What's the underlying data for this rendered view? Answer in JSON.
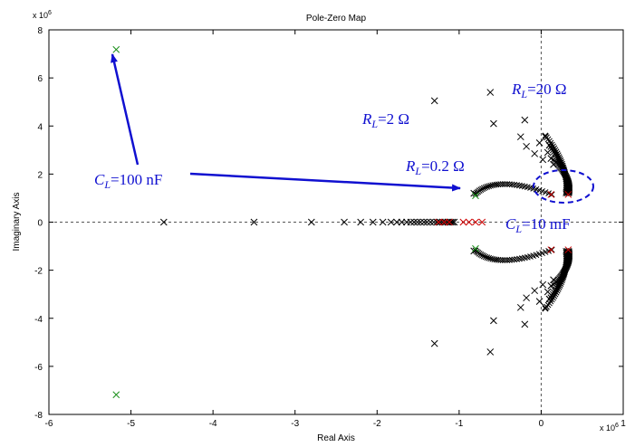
{
  "chart_data": {
    "type": "scatter",
    "title": "Pole-Zero Map",
    "xlabel": "Real Axis",
    "ylabel": "Imaginary Axis",
    "x_exponent": "x 10",
    "x_exponent_power": "6",
    "y_exponent": "x 10",
    "y_exponent_power": "6",
    "xlim": [
      -6,
      1
    ],
    "ylim": [
      -8,
      8
    ],
    "xticks": [
      -6,
      -5,
      -4,
      -3,
      -2,
      -1,
      0,
      1
    ],
    "yticks": [
      -8,
      -6,
      -4,
      -2,
      0,
      2,
      4,
      6,
      8
    ],
    "grid": false,
    "colors": {
      "black": "#000000",
      "green": "#1a8f1a",
      "red": "#cc0000",
      "annotation": "#1010d0"
    },
    "series": [
      {
        "color": "black",
        "marker": "x",
        "points": [
          [
            -4.6,
            0
          ],
          [
            -3.5,
            0
          ],
          [
            -2.8,
            0
          ],
          [
            -2.4,
            0
          ],
          [
            -2.2,
            0
          ],
          [
            -2.05,
            0
          ],
          [
            -1.93,
            0
          ],
          [
            -1.83,
            0
          ],
          [
            -1.76,
            0
          ],
          [
            -1.7,
            0
          ],
          [
            -1.64,
            0
          ],
          [
            -1.59,
            0
          ],
          [
            -1.55,
            0
          ],
          [
            -1.51,
            0
          ],
          [
            -1.47,
            0
          ],
          [
            -1.43,
            0
          ],
          [
            -1.39,
            0
          ],
          [
            -1.35,
            0
          ],
          [
            -1.31,
            0
          ],
          [
            -1.27,
            0
          ],
          [
            -1.23,
            0
          ],
          [
            -1.2,
            0
          ],
          [
            -1.17,
            0
          ],
          [
            -1.14,
            0
          ],
          [
            -1.12,
            0
          ],
          [
            -1.1,
            0
          ],
          [
            -1.08,
            0
          ],
          [
            -1.06,
            0
          ],
          [
            -1.3,
            5.05
          ],
          [
            -1.3,
            -5.05
          ],
          [
            -0.62,
            5.4
          ],
          [
            -0.62,
            -5.4
          ],
          [
            -0.58,
            4.1
          ],
          [
            -0.58,
            -4.1
          ],
          [
            -0.25,
            3.55
          ],
          [
            -0.25,
            -3.55
          ],
          [
            -0.18,
            3.15
          ],
          [
            -0.18,
            -3.15
          ],
          [
            -0.2,
            4.25
          ],
          [
            -0.2,
            -4.25
          ],
          [
            -0.08,
            2.85
          ],
          [
            -0.08,
            -2.85
          ],
          [
            -0.02,
            3.3
          ],
          [
            -0.02,
            -3.3
          ],
          [
            0.02,
            2.6
          ],
          [
            0.02,
            -2.6
          ],
          [
            0.05,
            3.55
          ],
          [
            0.05,
            -3.55
          ],
          [
            0.08,
            2.9
          ],
          [
            0.08,
            -2.9
          ],
          [
            0.1,
            3.2
          ],
          [
            0.1,
            -3.2
          ],
          [
            0.12,
            2.65
          ],
          [
            0.12,
            -2.65
          ],
          [
            0.15,
            2.4
          ],
          [
            0.15,
            -2.4
          ],
          [
            -0.82,
            1.2
          ],
          [
            -0.82,
            -1.2
          ]
        ]
      },
      {
        "color": "green",
        "marker": "x",
        "points": [
          [
            -5.18,
            7.18
          ],
          [
            -5.18,
            -7.18
          ],
          [
            -0.8,
            1.1
          ],
          [
            -0.8,
            -1.1
          ]
        ]
      },
      {
        "color": "red",
        "marker": "x",
        "points": [
          [
            -1.25,
            0
          ],
          [
            -1.18,
            0
          ],
          [
            -1.12,
            0
          ],
          [
            -0.95,
            0
          ],
          [
            -0.88,
            0
          ],
          [
            -0.8,
            0
          ],
          [
            -0.72,
            0
          ],
          [
            0.12,
            1.15
          ],
          [
            0.12,
            -1.15
          ],
          [
            0.33,
            1.15
          ],
          [
            0.33,
            -1.15
          ]
        ]
      }
    ],
    "loci": [
      {
        "name": "inner",
        "from": [
          -0.8,
          1.18
        ],
        "ctrl": [
          -0.55,
          2.0
        ],
        "to": [
          0.13,
          1.15
        ]
      },
      {
        "name": "outer_a",
        "from": [
          0.05,
          3.6
        ],
        "ctrl": [
          0.35,
          2.3
        ],
        "to": [
          0.3,
          1.2
        ]
      },
      {
        "name": "outer_b",
        "from": [
          0.1,
          3.2
        ],
        "ctrl": [
          0.35,
          2.0
        ],
        "to": [
          0.32,
          1.2
        ]
      },
      {
        "name": "outer_c",
        "from": [
          0.15,
          2.6
        ],
        "ctrl": [
          0.38,
          1.8
        ],
        "to": [
          0.34,
          1.2
        ]
      }
    ],
    "annotations": [
      {
        "id": "cl100",
        "prefix": "C",
        "subscript": "L",
        "text": "=100 nF"
      },
      {
        "id": "rl2",
        "prefix": "R",
        "subscript": "L",
        "text": "=2  Ω"
      },
      {
        "id": "rl02",
        "prefix": "R",
        "subscript": "L",
        "text": "=0.2 Ω"
      },
      {
        "id": "rl20",
        "prefix": "R",
        "subscript": "L",
        "text": "=20 Ω"
      },
      {
        "id": "cl10",
        "prefix": "C",
        "subscript": "L",
        "text": "=10 mF"
      }
    ]
  }
}
